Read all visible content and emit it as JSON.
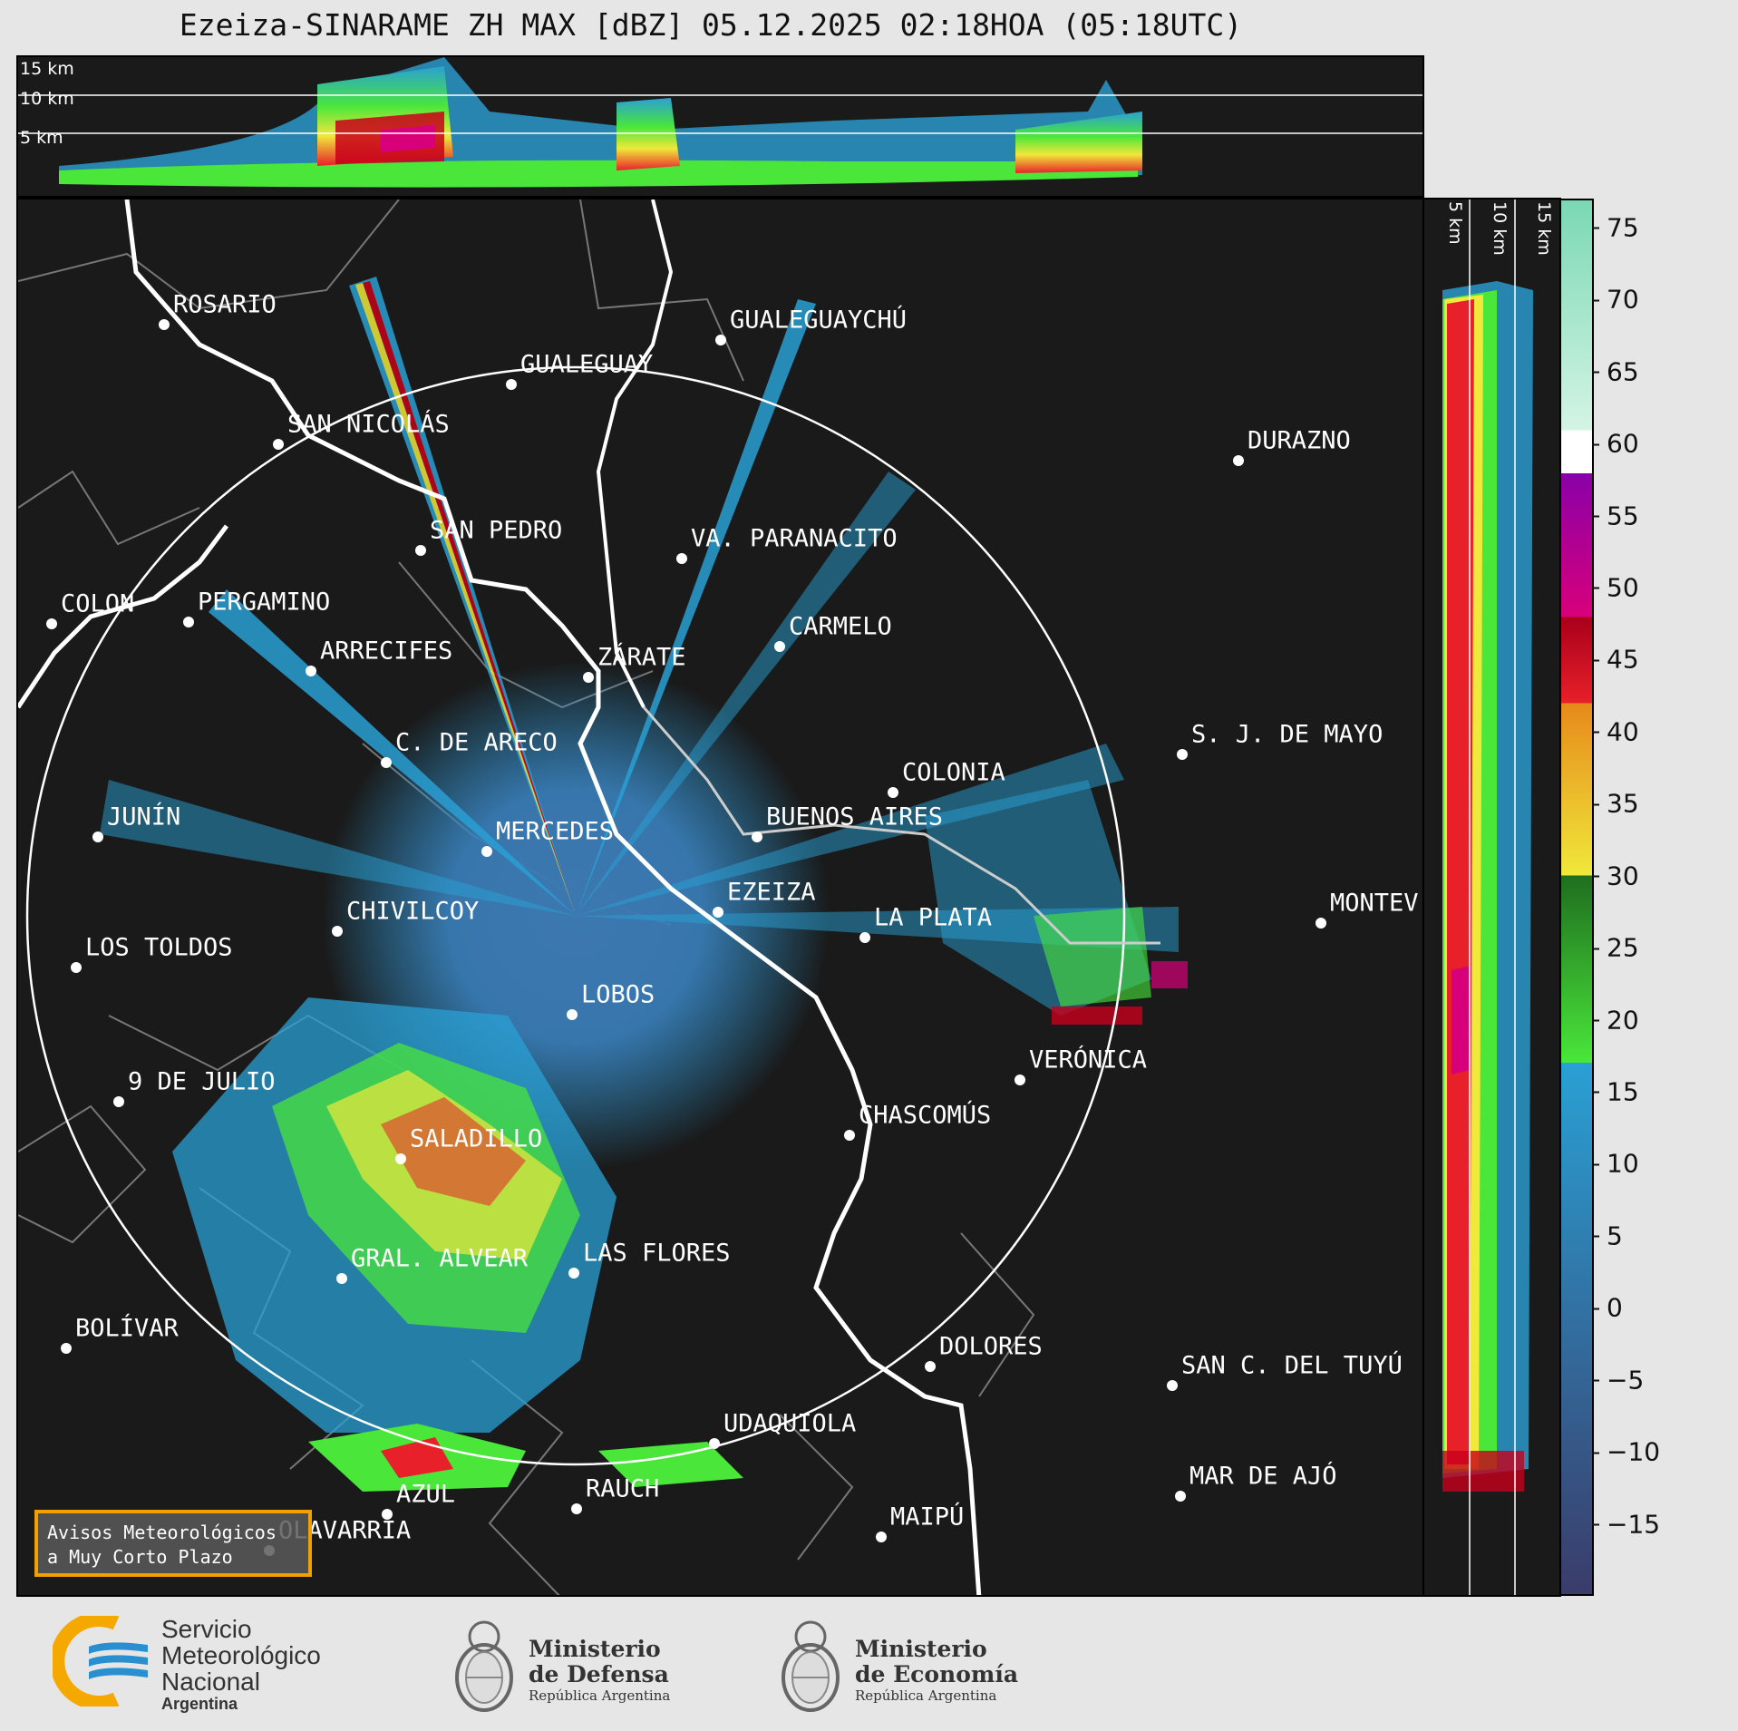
{
  "title": "Ezeiza-SINARAME ZH MAX [dBZ] 05.12.2025 02:18HOA (05:18UTC)",
  "top_panel": {
    "height_labels": [
      "15 km",
      "10 km",
      "5 km"
    ]
  },
  "right_panel": {
    "height_labels": [
      "5 km",
      "10 km",
      "15 km"
    ]
  },
  "colorbar": {
    "unit": "dBZ",
    "min": -20,
    "max": 77,
    "ticks": [
      75,
      70,
      65,
      60,
      55,
      50,
      45,
      40,
      35,
      30,
      25,
      20,
      15,
      10,
      5,
      0,
      -5,
      -10,
      -15
    ],
    "tick_labels": [
      "75",
      "70",
      "65",
      "60",
      "55",
      "50",
      "45",
      "40",
      "35",
      "30",
      "25",
      "20",
      "15",
      "10",
      "5",
      "0",
      "−5",
      "−10",
      "−15"
    ],
    "bands": [
      {
        "from": -20,
        "to": 17,
        "color_low": "#3a3c6a",
        "color_high": "#2aa0d4"
      },
      {
        "from": 17,
        "to": 30,
        "color_low": "#4ae63a",
        "color_high": "#1f6e1f"
      },
      {
        "from": 30,
        "to": 42,
        "color_low": "#f0e83a",
        "color_high": "#e68a1a"
      },
      {
        "from": 42,
        "to": 48,
        "color_low": "#e8202a",
        "color_high": "#a8001a"
      },
      {
        "from": 48,
        "to": 58,
        "color_low": "#d8007a",
        "color_high": "#8a00a8"
      },
      {
        "from": 58,
        "to": 61,
        "color_low": "#ffffff",
        "color_high": "#ffffff"
      },
      {
        "from": 61,
        "to": 77,
        "color_low": "#d4f4e4",
        "color_high": "#7ad8b4"
      }
    ]
  },
  "map": {
    "radar_center": "EZEIZA",
    "range_ring_km": 240,
    "cities": [
      {
        "name": "ROSARIO"
      },
      {
        "name": "GUALEGUAYCHÚ"
      },
      {
        "name": "GUALEGUAY"
      },
      {
        "name": "SAN NICOLÁS"
      },
      {
        "name": "DURAZNO"
      },
      {
        "name": "SAN PEDRO"
      },
      {
        "name": "VA. PARANACITO"
      },
      {
        "name": "COLON"
      },
      {
        "name": "PERGAMINO"
      },
      {
        "name": "CARMELO"
      },
      {
        "name": "ARRECIFES"
      },
      {
        "name": "ZÁRATE"
      },
      {
        "name": "S. J. DE MAYO"
      },
      {
        "name": "C. DE ARECO"
      },
      {
        "name": "COLONIA"
      },
      {
        "name": "JUNÍN"
      },
      {
        "name": "MERCEDES"
      },
      {
        "name": "BUENOS AIRES"
      },
      {
        "name": "EZEIZA"
      },
      {
        "name": "MONTEV"
      },
      {
        "name": "CHIVILCOY"
      },
      {
        "name": "LA PLATA"
      },
      {
        "name": "LOS TOLDOS"
      },
      {
        "name": "LOBOS"
      },
      {
        "name": "VERÓNICA"
      },
      {
        "name": "9 DE JULIO"
      },
      {
        "name": "CHASCOMÚS"
      },
      {
        "name": "SALADILLO"
      },
      {
        "name": "GRAL. ALVEAR"
      },
      {
        "name": "LAS FLORES"
      },
      {
        "name": "BOLÍVAR"
      },
      {
        "name": "DOLORES"
      },
      {
        "name": "SAN C. DEL TUYÚ"
      },
      {
        "name": "UDAQUIOLA"
      },
      {
        "name": "MAR DE AJÓ"
      },
      {
        "name": "AZUL"
      },
      {
        "name": "RAUCH"
      },
      {
        "name": "OLAVARRÍA"
      },
      {
        "name": "MAIPÚ"
      }
    ]
  },
  "notice": {
    "line1": "Avisos Meteorológicos",
    "line2": "a Muy Corto Plazo"
  },
  "footer": {
    "smn": {
      "line1": "Servicio",
      "line2": "Meteorológico",
      "line3": "Nacional",
      "line4": "Argentina"
    },
    "defensa": {
      "line1": "Ministerio",
      "line2": "de Defensa",
      "sub": "República Argentina"
    },
    "economia": {
      "line1": "Ministerio",
      "line2": "de Economía",
      "sub": "República Argentina"
    }
  },
  "colors": {
    "panel_bg": "#1a1a1a",
    "smn_blue": "#2a8fd0",
    "smn_orange": "#f5a800"
  }
}
